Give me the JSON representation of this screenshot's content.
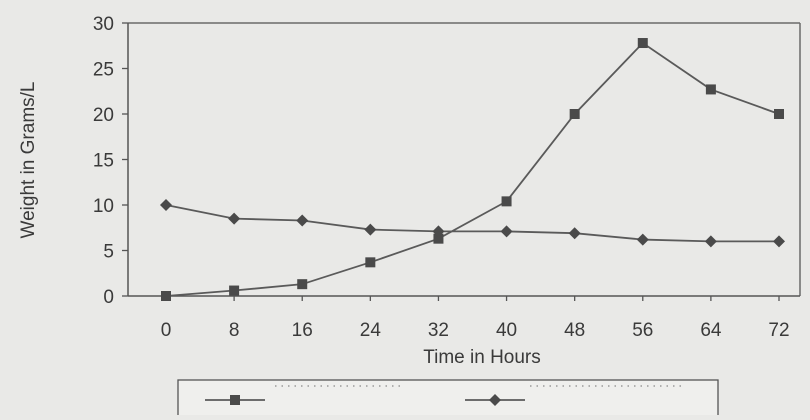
{
  "chart_data": {
    "type": "line",
    "title": "",
    "xlabel": "Time in Hours",
    "ylabel": "Weight in Grams/L",
    "x": [
      0,
      8,
      16,
      24,
      32,
      40,
      48,
      56,
      64,
      72
    ],
    "xlim": [
      0,
      72
    ],
    "ylim": [
      0,
      30
    ],
    "yticks": [
      0,
      5,
      10,
      15,
      20,
      25,
      30
    ],
    "grid": false,
    "legend_position": "bottom",
    "series": [
      {
        "marker": "square",
        "values": [
          0,
          0.6,
          1.3,
          3.7,
          6.3,
          10.4,
          20.0,
          27.8,
          22.7,
          20.0
        ]
      },
      {
        "marker": "diamond",
        "values": [
          10.0,
          8.5,
          8.3,
          7.3,
          7.1,
          7.1,
          6.9,
          6.2,
          6.0,
          6.0
        ]
      }
    ],
    "colors": {
      "line": "#5a5a5a",
      "marker": "#4a4a4a",
      "background": "#e9e9e7",
      "text": "#3a3a3a"
    }
  }
}
